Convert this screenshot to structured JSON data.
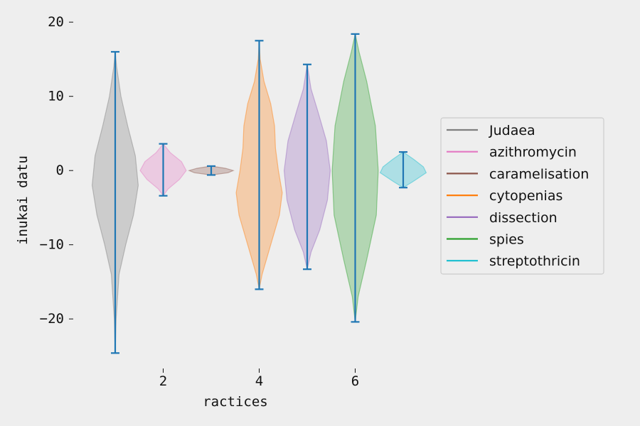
{
  "chart_data": {
    "type": "violin",
    "title": "",
    "xlabel": "ractices",
    "ylabel": "inukai datu",
    "xlim": [
      0.2,
      7.8
    ],
    "ylim": [
      -26.2,
      20.4
    ],
    "x_ticks": [
      2,
      4,
      6
    ],
    "y_ticks": [
      -20,
      -10,
      0,
      10,
      20
    ],
    "y_tick_labels": [
      "−20",
      "−10",
      "0",
      "10",
      "20"
    ],
    "grid": false,
    "legend_position": "center-right",
    "extrema_color": "#1f77b4",
    "series": [
      {
        "name": "Judaea",
        "color": "#7f7f7f",
        "position": 1,
        "min": -24.6,
        "max": 16.0,
        "density": [
          [
            -24.6,
            0
          ],
          [
            -20,
            0.02
          ],
          [
            -14,
            0.08
          ],
          [
            -10,
            0.22
          ],
          [
            -6,
            0.38
          ],
          [
            -2,
            0.48
          ],
          [
            2,
            0.42
          ],
          [
            6,
            0.26
          ],
          [
            10,
            0.12
          ],
          [
            14,
            0.03
          ],
          [
            16.0,
            0
          ]
        ]
      },
      {
        "name": "azithromycin",
        "color": "#e377c2",
        "position": 2,
        "min": -3.4,
        "max": 3.6,
        "density": [
          [
            -3.4,
            0
          ],
          [
            -2.5,
            0.1
          ],
          [
            -1.2,
            0.34
          ],
          [
            0,
            0.48
          ],
          [
            1.2,
            0.38
          ],
          [
            2.4,
            0.15
          ],
          [
            3.6,
            0
          ]
        ]
      },
      {
        "name": "caramelisation",
        "color": "#8c564b",
        "position": 3,
        "min": -0.6,
        "max": 0.6,
        "density": [
          [
            -0.6,
            0
          ],
          [
            -0.3,
            0.35
          ],
          [
            0,
            0.46
          ],
          [
            0.3,
            0.3
          ],
          [
            0.6,
            0
          ]
        ]
      },
      {
        "name": "cytopenias",
        "color": "#ff7f0e",
        "position": 4,
        "min": -16.0,
        "max": 17.5,
        "density": [
          [
            -16.0,
            0
          ],
          [
            -14,
            0.06
          ],
          [
            -10,
            0.24
          ],
          [
            -6,
            0.42
          ],
          [
            -3,
            0.48
          ],
          [
            0,
            0.4
          ],
          [
            3,
            0.34
          ],
          [
            6,
            0.32
          ],
          [
            9,
            0.24
          ],
          [
            12,
            0.1
          ],
          [
            15,
            0.02
          ],
          [
            17.5,
            0
          ]
        ]
      },
      {
        "name": "dissection",
        "color": "#9467bd",
        "position": 5,
        "min": -13.3,
        "max": 14.3,
        "density": [
          [
            -13.3,
            0
          ],
          [
            -11,
            0.08
          ],
          [
            -8,
            0.26
          ],
          [
            -4,
            0.42
          ],
          [
            0,
            0.48
          ],
          [
            4,
            0.4
          ],
          [
            8,
            0.22
          ],
          [
            11,
            0.08
          ],
          [
            14.3,
            0
          ]
        ]
      },
      {
        "name": "spies",
        "color": "#2ca02c",
        "position": 6,
        "min": -20.4,
        "max": 18.4,
        "density": [
          [
            -20.4,
            0
          ],
          [
            -17,
            0.06
          ],
          [
            -12,
            0.24
          ],
          [
            -6,
            0.44
          ],
          [
            0,
            0.48
          ],
          [
            6,
            0.42
          ],
          [
            12,
            0.24
          ],
          [
            16,
            0.08
          ],
          [
            18.4,
            0
          ]
        ]
      },
      {
        "name": "streptothricin",
        "color": "#17becf",
        "position": 7,
        "min": -2.3,
        "max": 2.5,
        "density": [
          [
            -2.3,
            0
          ],
          [
            -1.5,
            0.2
          ],
          [
            -0.3,
            0.48
          ],
          [
            0.5,
            0.42
          ],
          [
            1.5,
            0.22
          ],
          [
            2.5,
            0
          ]
        ]
      }
    ]
  }
}
